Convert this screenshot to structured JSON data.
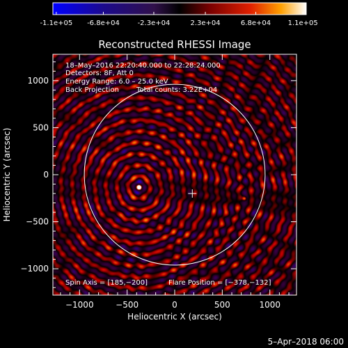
{
  "colorbar": {
    "ticks": [
      "-1.1e+05",
      "-6.8e+04",
      "-2.3e+04",
      "2.3e+04",
      "6.8e+04",
      "1.1e+05"
    ],
    "tick_values": [
      -110000,
      -68000,
      -23000,
      23000,
      68000,
      110000
    ],
    "range": [
      -113000,
      113000
    ]
  },
  "chart_data": {
    "type": "heatmap",
    "title": "Reconstructed RHESSI Image",
    "xlabel": "Heliocentric X (arcsec)",
    "ylabel": "Heliocentric Y (arcsec)",
    "xlim": [
      -1280,
      1280
    ],
    "ylim": [
      -1280,
      1280
    ],
    "xticks": [
      -1000,
      -500,
      0,
      500,
      1000
    ],
    "xtick_labels": [
      "−1000",
      "−500",
      "0",
      "500",
      "1000"
    ],
    "yticks": [
      -1000,
      -500,
      0,
      500,
      1000
    ],
    "ytick_labels": [
      "−1000",
      "−500",
      "0",
      "500",
      "1000"
    ],
    "solar_limb_radius": 950,
    "sources": [
      {
        "x": -378,
        "y": -132,
        "amplitude": 110000
      },
      {
        "x": 730,
        "y": -250,
        "amplitude": 45000
      }
    ],
    "spin_axis": [
      185,
      -200
    ],
    "annotations": {
      "time_range": "18–May–2016 22:20:40.000 to 22:28:24.000",
      "detectors": "Detectors: 8F, Att 0",
      "energy_range": "Energy Range: 6.0 – 25.0 keV",
      "method": "Back Projection",
      "total_counts": "Total counts: 3.22E+04",
      "spin_axis_text": "Spin Axis = [185,−200]",
      "flare_position_text": "Flare Position = [−378,−132]"
    }
  },
  "footer": {
    "timestamp": "5–Apr–2018 06:00"
  }
}
